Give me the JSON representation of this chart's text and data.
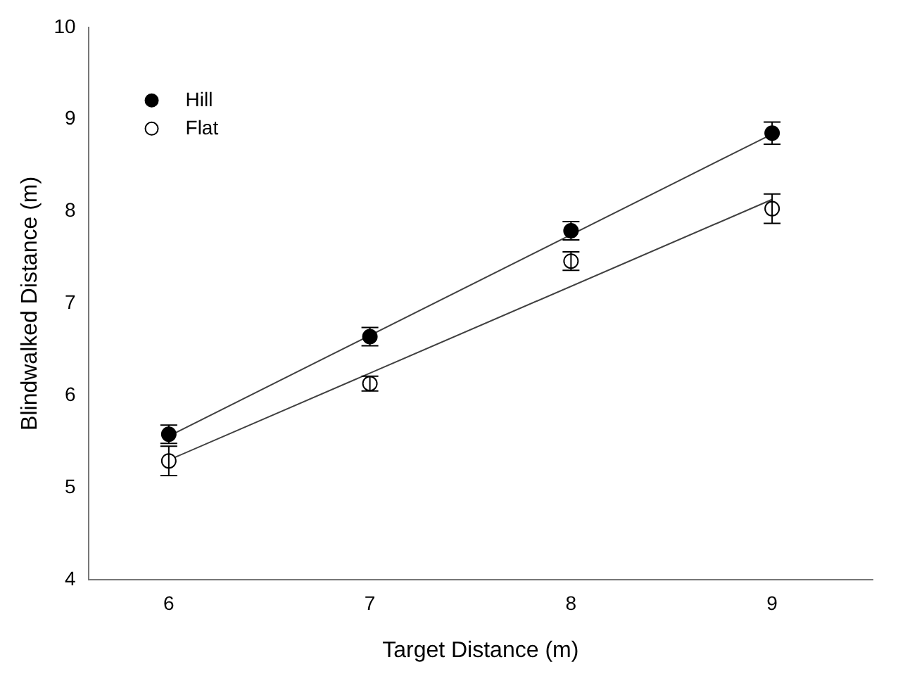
{
  "chart_data": {
    "type": "scatter",
    "xlabel": "Target Distance (m)",
    "ylabel": "Blindwalked Distance (m)",
    "xlim": [
      5.6,
      9.5
    ],
    "xticks": [
      6,
      7,
      8,
      9
    ],
    "ylim": [
      4,
      10
    ],
    "yticks": [
      4,
      5,
      6,
      7,
      8,
      9,
      10
    ],
    "grid": false,
    "legend": "top left",
    "series": [
      {
        "name": "Hill",
        "color": "#000000",
        "marker": "circle",
        "x": [
          6,
          7,
          8,
          9
        ],
        "values": [
          5.58,
          6.64,
          7.79,
          8.85
        ],
        "errors": [
          0.1,
          0.1,
          0.1,
          0.12
        ]
      },
      {
        "name": "Flat",
        "color": "#ffffff",
        "marker": "circle",
        "x": [
          6,
          7,
          8,
          9
        ],
        "values": [
          5.29,
          6.13,
          7.46,
          8.03
        ],
        "errors": [
          0.16,
          0.08,
          0.1,
          0.16
        ]
      },
      {
        "type": "line",
        "color": "#404040",
        "x": [
          6,
          9
        ],
        "values": [
          5.56,
          8.84
        ]
      },
      {
        "type": "line",
        "color": "#404040",
        "x": [
          6,
          9
        ],
        "values": [
          5.3,
          8.13
        ]
      }
    ]
  }
}
